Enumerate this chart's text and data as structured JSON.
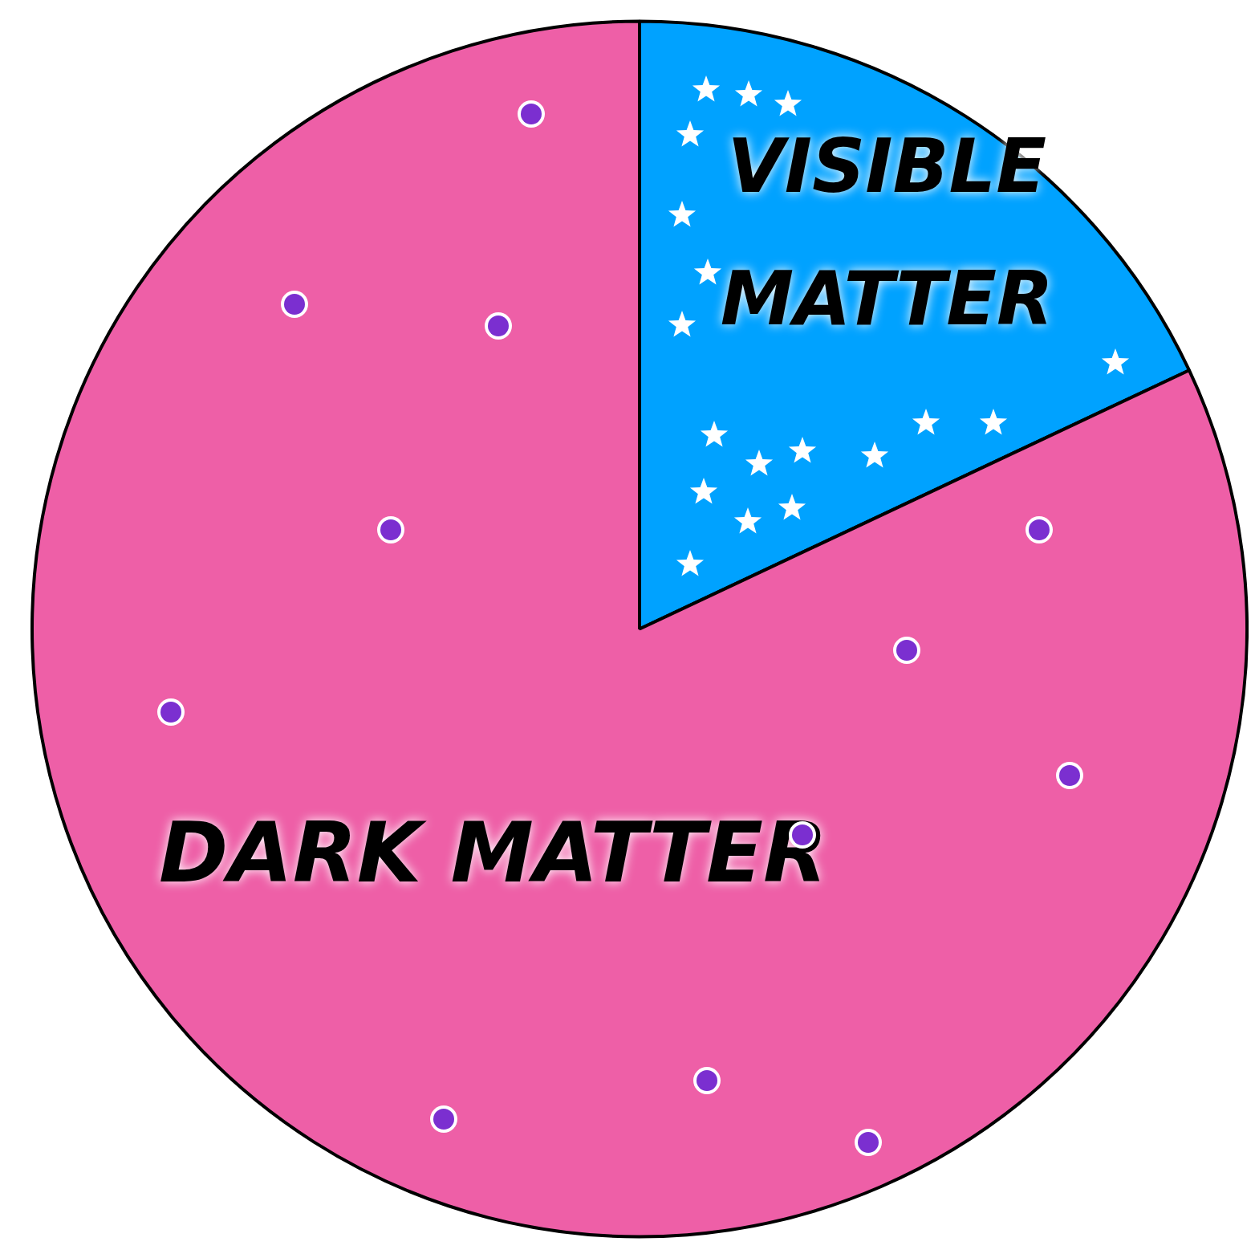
{
  "chart_data": {
    "type": "pie",
    "categories": [
      "VISIBLE MATTER",
      "DARK MATTER"
    ],
    "values": [
      18,
      82
    ],
    "colors": [
      "#00a2ff",
      "#ee5fa7"
    ],
    "legend": false
  }
}
